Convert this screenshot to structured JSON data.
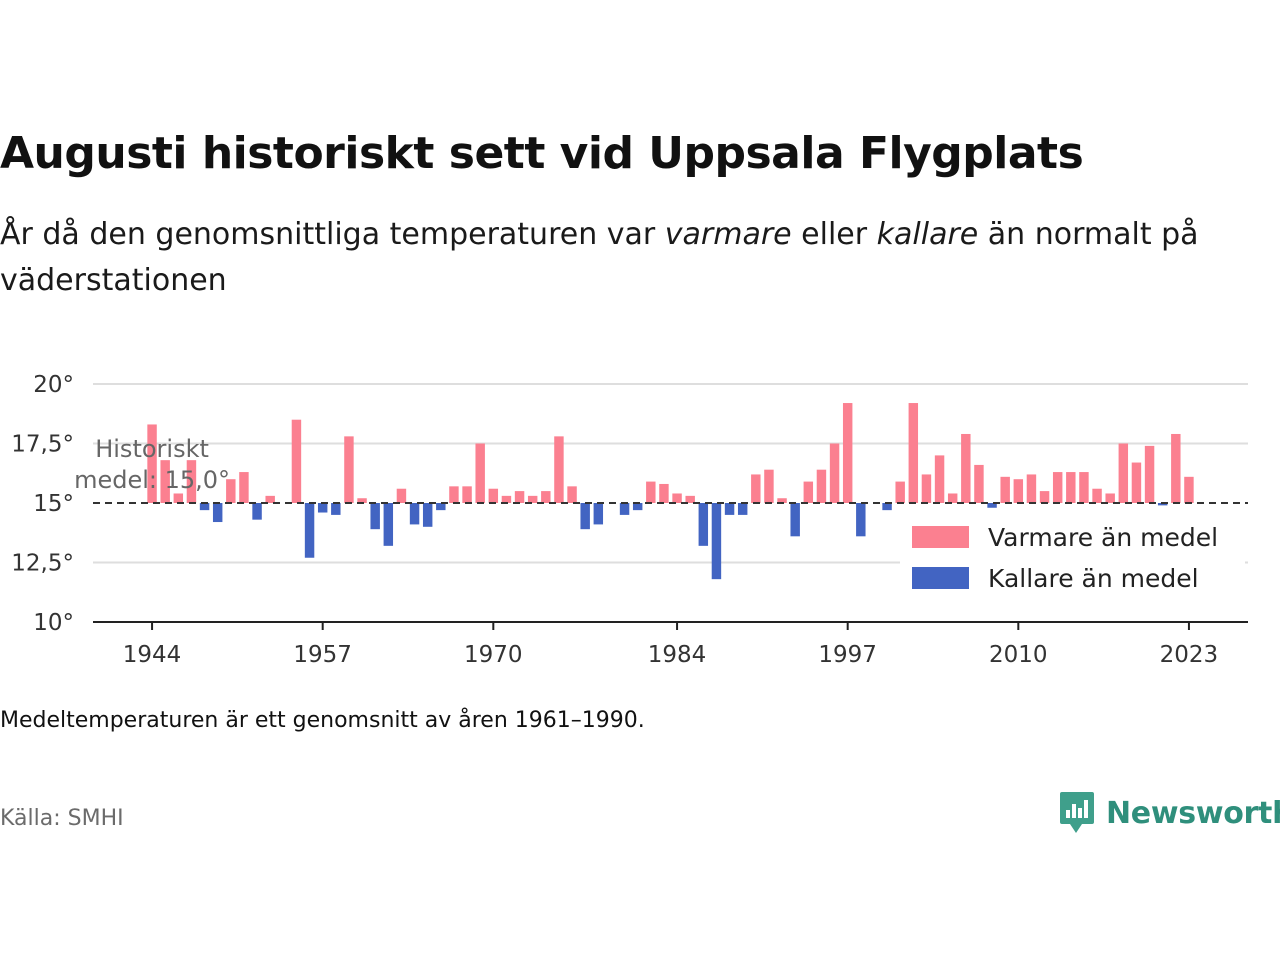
{
  "title": "Augusti historiskt sett vid Uppsala Flygplats",
  "subtitle": {
    "part1": "År då den genomsnittliga temperaturen var ",
    "em1": "varmare",
    "part2": " eller ",
    "em2": "kallare",
    "part3": " än normalt på väderstationen"
  },
  "note": "Medeltemperaturen är ett genomsnitt av åren 1961–1990.",
  "source": "Källa: SMHI",
  "brand": {
    "name": "Newsworthy",
    "icon": "newsworthy-logo-icon",
    "color": "#2f8f7c"
  },
  "chart_data": {
    "type": "bar",
    "baseline": 15.0,
    "baseline_annotation": [
      "Historiskt",
      "medel: 15,0°"
    ],
    "y_ticks": [
      10,
      12.5,
      15,
      17.5,
      20
    ],
    "y_tick_labels": [
      "10°",
      "12,5°",
      "15°",
      "17,5°",
      "20°"
    ],
    "ylim": [
      10,
      20
    ],
    "x_ticks": [
      1944,
      1957,
      1970,
      1984,
      1997,
      2010,
      2023
    ],
    "x_tick_labels": [
      "1944",
      "1957",
      "1970",
      "1984",
      "1997",
      "2010",
      "2023"
    ],
    "xlim": [
      1939.5,
      2027.5
    ],
    "grid": true,
    "legend_position": "right, inside plot",
    "series": [
      {
        "name": "Varmare än medel",
        "color": "#fb8090"
      },
      {
        "name": "Kallare än medel",
        "color": "#4264c2"
      }
    ],
    "x": [
      1944,
      1945,
      1946,
      1947,
      1948,
      1949,
      1950,
      1951,
      1952,
      1953,
      1954,
      1955,
      1956,
      1957,
      1958,
      1959,
      1960,
      1961,
      1962,
      1963,
      1964,
      1965,
      1966,
      1967,
      1968,
      1969,
      1970,
      1971,
      1972,
      1973,
      1974,
      1975,
      1976,
      1977,
      1978,
      1979,
      1980,
      1981,
      1982,
      1983,
      1984,
      1985,
      1986,
      1987,
      1988,
      1989,
      1990,
      1991,
      1992,
      1993,
      1994,
      1995,
      1996,
      1997,
      1998,
      1999,
      2000,
      2001,
      2002,
      2003,
      2004,
      2005,
      2006,
      2007,
      2008,
      2009,
      2010,
      2011,
      2012,
      2013,
      2014,
      2015,
      2016,
      2017,
      2018,
      2019,
      2020,
      2021,
      2022,
      2023,
      2024
    ],
    "values": [
      18.3,
      16.8,
      15.4,
      16.8,
      14.7,
      14.2,
      16.0,
      16.3,
      14.3,
      15.3,
      15.0,
      18.5,
      12.7,
      14.6,
      14.5,
      17.8,
      15.2,
      13.9,
      13.2,
      15.6,
      14.1,
      14.0,
      14.7,
      15.7,
      15.7,
      17.5,
      15.6,
      15.3,
      15.5,
      15.3,
      15.5,
      17.8,
      15.7,
      13.9,
      14.1,
      15.0,
      14.5,
      14.7,
      15.9,
      15.8,
      15.4,
      15.3,
      13.2,
      11.8,
      14.5,
      14.5,
      16.2,
      16.4,
      15.2,
      13.6,
      15.9,
      16.4,
      17.5,
      19.2,
      13.6,
      15.0,
      14.7,
      15.9,
      19.2,
      16.2,
      17.0,
      15.4,
      17.9,
      16.6,
      14.8,
      16.1,
      16.0,
      16.2,
      15.5,
      16.3,
      16.3,
      16.3,
      15.6,
      15.4,
      17.5,
      16.7,
      17.4,
      14.9,
      17.9,
      16.1,
      15.0
    ]
  }
}
